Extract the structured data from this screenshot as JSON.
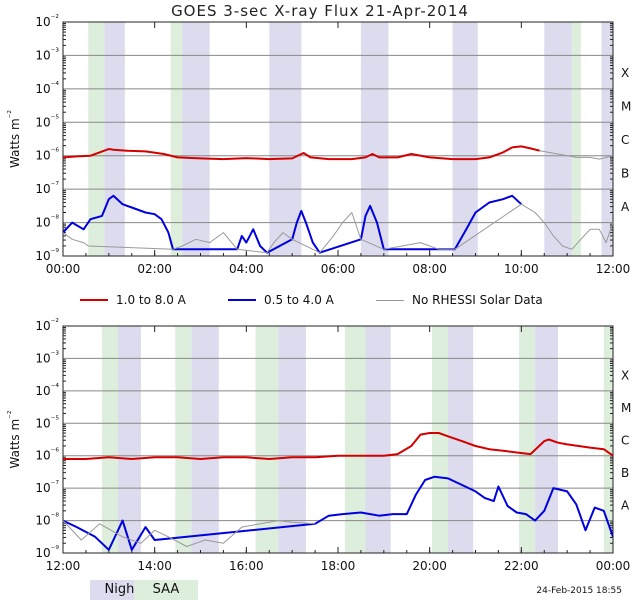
{
  "title": "GOES 3-sec X-ray Flux   21-Apr-2014",
  "legend": [
    {
      "label": "1.0 to 8.0 A",
      "color": "#d40000"
    },
    {
      "label": "0.5 to 4.0 A",
      "color": "#0000e0"
    },
    {
      "label": "No RHESSI Solar Data",
      "color": "#999999"
    }
  ],
  "key": {
    "night": "Night",
    "saa": "SAA",
    "night_color": "#dcdcee",
    "saa_color": "#ddeedd"
  },
  "timestamp": "24-Feb-2015 18:55",
  "chart_data": [
    {
      "type": "line",
      "title": "GOES 3-sec X-ray Flux   21-Apr-2014",
      "ylabel": "Watts m-2",
      "y_scale": "log",
      "ylim_exp": [
        -9,
        -2
      ],
      "y_ticks": [
        "10-9",
        "10-8",
        "10-7",
        "10-6",
        "10-5",
        "10-4",
        "10-3",
        "10-2"
      ],
      "class_labels": [
        "A",
        "B",
        "C",
        "M",
        "X"
      ],
      "x_range_hours": [
        0,
        12
      ],
      "x_ticks": [
        "00:00",
        "02:00",
        "04:00",
        "06:00",
        "08:00",
        "10:00",
        "12:00"
      ],
      "night_bands_hours": [
        [
          0.9,
          1.35
        ],
        [
          2.6,
          3.2
        ],
        [
          4.5,
          5.2
        ],
        [
          6.5,
          7.1
        ],
        [
          8.5,
          9.05
        ],
        [
          10.5,
          11.1
        ],
        [
          11.75,
          12
        ]
      ],
      "saa_bands_hours": [
        [
          0.55,
          0.9
        ],
        [
          2.35,
          2.6
        ],
        [
          11.1,
          11.3
        ]
      ],
      "series": [
        {
          "name": "1.0 to 8.0 A",
          "color": "#d40000",
          "x": [
            0,
            0.3,
            0.6,
            0.9,
            1.0,
            1.1,
            1.4,
            1.8,
            2.2,
            2.5,
            3.0,
            3.5,
            4.0,
            4.5,
            5.0,
            5.25,
            5.4,
            5.8,
            6.3,
            6.6,
            6.75,
            6.9,
            7.3,
            7.6,
            8.0,
            8.5,
            9.0,
            9.3,
            9.6,
            9.8,
            10.0,
            10.2,
            10.4
          ],
          "log": [
            -6.05,
            -6.02,
            -6.0,
            -5.85,
            -5.8,
            -5.82,
            -5.85,
            -5.87,
            -5.95,
            -6.05,
            -6.08,
            -6.1,
            -6.07,
            -6.1,
            -6.08,
            -5.92,
            -6.05,
            -6.1,
            -6.1,
            -6.05,
            -5.95,
            -6.05,
            -6.05,
            -5.95,
            -6.05,
            -6.1,
            -6.1,
            -6.05,
            -5.9,
            -5.75,
            -5.72,
            -5.78,
            -5.85
          ]
        },
        {
          "name": "1.0 to 8.0 A (no RHESSI)",
          "color": "#999999",
          "x": [
            10.4,
            10.8,
            11.0,
            11.2,
            11.5,
            11.7,
            12.0
          ],
          "log": [
            -5.85,
            -5.95,
            -6.0,
            -6.05,
            -6.05,
            -6.1,
            -6.0
          ]
        },
        {
          "name": "0.5 to 4.0 A",
          "color": "#0000e0",
          "x": [
            0,
            0.2,
            0.45,
            0.6,
            0.85,
            1.0,
            1.1,
            1.3,
            1.5,
            1.8,
            2.0,
            2.15,
            2.3,
            2.4,
            3.8,
            3.9,
            4.0,
            4.15,
            4.3,
            4.45,
            5.0,
            5.1,
            5.2,
            5.3,
            5.45,
            5.6,
            6.5,
            6.6,
            6.7,
            6.85,
            7.0,
            8.55,
            8.8,
            9.0,
            9.3,
            9.6,
            9.8,
            10.0
          ],
          "log": [
            -8.3,
            -8.0,
            -8.2,
            -7.9,
            -7.8,
            -7.3,
            -7.2,
            -7.45,
            -7.55,
            -7.7,
            -7.75,
            -7.9,
            -8.3,
            -8.8,
            -8.8,
            -8.4,
            -8.6,
            -8.2,
            -8.7,
            -8.9,
            -8.5,
            -8.0,
            -7.65,
            -8.0,
            -8.6,
            -8.9,
            -8.5,
            -7.8,
            -7.5,
            -8.0,
            -8.8,
            -8.8,
            -8.2,
            -7.7,
            -7.4,
            -7.3,
            -7.2,
            -7.45
          ]
        },
        {
          "name": "0.5 to 4.0 A (no RHESSI)",
          "color": "#999999",
          "x": [
            0,
            0.2,
            0.45,
            0.55,
            2.4,
            2.6,
            2.9,
            3.2,
            3.5,
            3.8,
            4.45,
            4.6,
            4.8,
            5.0,
            5.6,
            5.9,
            6.1,
            6.3,
            6.5,
            7.0,
            7.4,
            7.8,
            8.2,
            8.55,
            10.0,
            10.3,
            10.5,
            10.7,
            10.9,
            11.1,
            11.3,
            11.5,
            11.7,
            11.85,
            12.0
          ],
          "log": [
            -8.3,
            -8.5,
            -8.6,
            -8.7,
            -8.8,
            -8.7,
            -8.5,
            -8.6,
            -8.3,
            -8.8,
            -8.9,
            -8.6,
            -8.3,
            -8.5,
            -8.9,
            -8.4,
            -8.0,
            -7.7,
            -8.5,
            -8.8,
            -8.7,
            -8.6,
            -8.8,
            -8.8,
            -7.45,
            -7.7,
            -8.0,
            -8.4,
            -8.7,
            -8.8,
            -8.5,
            -8.2,
            -8.2,
            -8.6,
            -8.0
          ]
        }
      ]
    },
    {
      "type": "line",
      "ylabel": "Watts m-2",
      "y_scale": "log",
      "ylim_exp": [
        -9,
        -2
      ],
      "y_ticks": [
        "10-9",
        "10-8",
        "10-7",
        "10-6",
        "10-5",
        "10-4",
        "10-3",
        "10-2"
      ],
      "class_labels": [
        "A",
        "B",
        "C",
        "M",
        "X"
      ],
      "x_range_hours": [
        12,
        24
      ],
      "x_ticks": [
        "12:00",
        "14:00",
        "16:00",
        "18:00",
        "20:00",
        "22:00",
        "00:00"
      ],
      "night_bands_hours": [
        [
          13.2,
          13.7
        ],
        [
          14.8,
          15.4
        ],
        [
          16.7,
          17.3
        ],
        [
          18.6,
          19.15
        ],
        [
          20.4,
          20.95
        ],
        [
          22.3,
          22.8
        ],
        [
          24.0,
          24.05
        ]
      ],
      "saa_bands_hours": [
        [
          12.85,
          13.2
        ],
        [
          14.45,
          14.8
        ],
        [
          16.2,
          16.7
        ],
        [
          18.15,
          18.6
        ],
        [
          20.05,
          20.4
        ],
        [
          21.95,
          22.3
        ],
        [
          23.8,
          24.0
        ]
      ],
      "series": [
        {
          "name": "1.0 to 8.0 A",
          "color": "#d40000",
          "x": [
            12.0,
            12.5,
            13.0,
            13.5,
            14.0,
            14.5,
            15.0,
            15.5,
            16.0,
            16.5,
            17.0,
            17.5,
            18.0,
            18.5,
            19.0,
            19.3,
            19.6,
            19.8,
            20.0,
            20.2,
            20.4,
            20.7,
            21.0,
            21.3,
            21.6,
            21.9,
            22.2,
            22.5,
            22.6,
            22.8,
            23.0,
            23.5,
            23.8,
            24.0
          ],
          "log": [
            -6.1,
            -6.1,
            -6.05,
            -6.1,
            -6.05,
            -6.05,
            -6.1,
            -6.05,
            -6.05,
            -6.1,
            -6.05,
            -6.05,
            -6.0,
            -6.0,
            -6.0,
            -5.95,
            -5.7,
            -5.35,
            -5.3,
            -5.3,
            -5.4,
            -5.55,
            -5.7,
            -5.8,
            -5.85,
            -5.9,
            -5.95,
            -5.55,
            -5.5,
            -5.6,
            -5.65,
            -5.75,
            -5.8,
            -6.0
          ]
        },
        {
          "name": "0.5 to 4.0 A",
          "color": "#0000e0",
          "x": [
            12.0,
            12.3,
            12.7,
            13.0,
            13.3,
            13.5,
            13.8,
            14.0,
            17.5,
            17.8,
            18.1,
            18.5,
            18.9,
            19.2,
            19.5,
            19.7,
            19.9,
            20.1,
            20.4,
            20.7,
            21.0,
            21.2,
            21.4,
            21.5,
            21.7,
            21.9,
            22.1,
            22.3,
            22.5,
            22.7,
            23.0,
            23.2,
            23.4,
            23.6,
            23.8,
            24.0
          ],
          "log": [
            -8.0,
            -8.2,
            -8.5,
            -8.9,
            -8.0,
            -8.9,
            -8.2,
            -8.6,
            -8.1,
            -7.85,
            -7.8,
            -7.75,
            -7.85,
            -7.8,
            -7.8,
            -7.2,
            -6.75,
            -6.65,
            -6.7,
            -6.9,
            -7.1,
            -7.3,
            -7.4,
            -6.95,
            -7.55,
            -7.75,
            -7.8,
            -8.0,
            -7.7,
            -7.0,
            -7.1,
            -7.5,
            -8.3,
            -7.6,
            -7.7,
            -8.5
          ]
        },
        {
          "name": "0.5 to 4.0 A (no RHESSI)",
          "color": "#999999",
          "x": [
            12.0,
            12.4,
            12.8,
            13.3,
            13.7,
            14.0,
            14.3,
            14.7,
            15.1,
            15.5,
            15.9,
            16.3,
            16.7,
            17.0,
            17.5
          ],
          "log": [
            -8.0,
            -8.6,
            -8.1,
            -8.5,
            -8.7,
            -8.3,
            -8.5,
            -8.8,
            -8.6,
            -8.7,
            -8.2,
            -8.1,
            -8.0,
            -8.05,
            -8.1
          ]
        }
      ]
    }
  ]
}
